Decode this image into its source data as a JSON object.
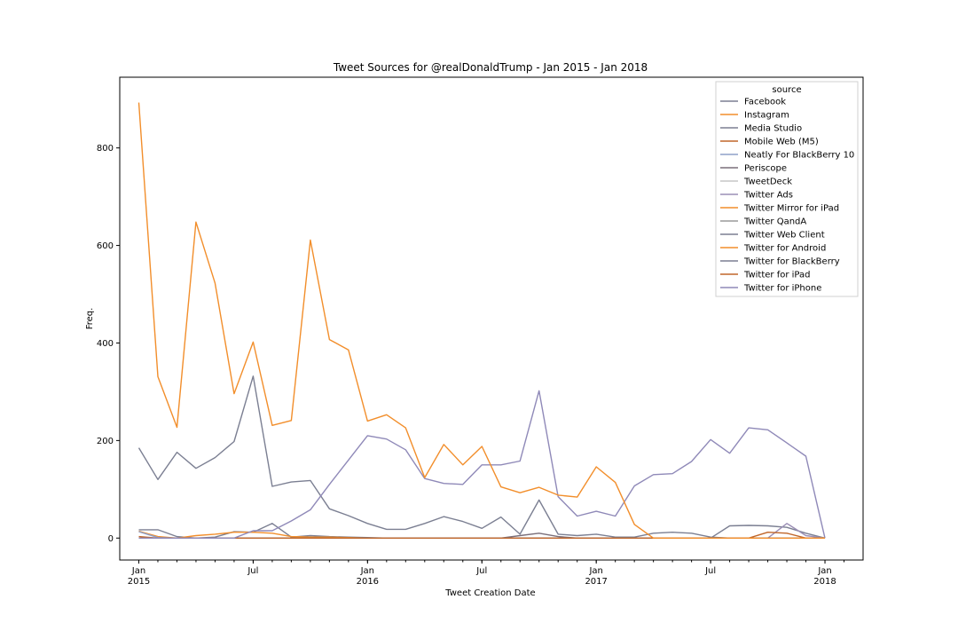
{
  "chart_data": {
    "type": "line",
    "title": "Tweet Sources for @realDonaldTrump - Jan 2015 - Jan 2018",
    "xlabel": "Tweet Creation Date",
    "ylabel": "Freq.",
    "ylim": [
      -45,
      945
    ],
    "y_ticks": [
      0,
      200,
      400,
      600,
      800
    ],
    "x_tick_major": [
      {
        "month": 0,
        "label": "Jan",
        "year": "2015"
      },
      {
        "month": 6,
        "label": "Jul",
        "year": ""
      },
      {
        "month": 12,
        "label": "Jan",
        "year": "2016"
      },
      {
        "month": 18,
        "label": "Jul",
        "year": ""
      },
      {
        "month": 24,
        "label": "Jan",
        "year": "2017"
      },
      {
        "month": 30,
        "label": "Jul",
        "year": ""
      },
      {
        "month": 36,
        "label": "Jan",
        "year": "2018"
      }
    ],
    "x_range_months": [
      -1,
      38
    ],
    "legend_title": "source",
    "legend_placement": "top-right",
    "grid": false,
    "series": [
      {
        "name": "Facebook",
        "color": "#7b7f92",
        "values": [
          17,
          17,
          3,
          0,
          2,
          13,
          12,
          30,
          2,
          5,
          3,
          2,
          1,
          0,
          0,
          0,
          0,
          0,
          0,
          0,
          0,
          0,
          0,
          0,
          0,
          0,
          0,
          0,
          0,
          0,
          0,
          0,
          0,
          0,
          0,
          0,
          0
        ]
      },
      {
        "name": "Instagram",
        "color": "#f28e2b",
        "values": [
          14,
          3,
          0,
          5,
          8,
          12,
          12,
          10,
          3,
          2,
          2,
          1,
          0,
          0,
          0,
          0,
          0,
          0,
          0,
          0,
          0,
          0,
          0,
          0,
          0,
          0,
          0,
          0,
          0,
          0,
          0,
          0,
          0,
          0,
          0,
          0,
          0
        ]
      },
      {
        "name": "Media Studio",
        "color": "#7b7f92",
        "values": [
          0,
          0,
          0,
          0,
          0,
          0,
          0,
          0,
          0,
          0,
          0,
          0,
          0,
          0,
          0,
          0,
          0,
          0,
          0,
          0,
          0,
          0,
          0,
          0,
          0,
          0,
          0,
          0,
          0,
          0,
          0,
          25,
          26,
          25,
          22,
          10,
          0
        ]
      },
      {
        "name": "Mobile Web (M5)",
        "color": "#c0662a",
        "values": [
          3,
          0,
          0,
          0,
          0,
          0,
          0,
          0,
          0,
          0,
          0,
          0,
          0,
          0,
          0,
          0,
          0,
          0,
          0,
          0,
          0,
          0,
          0,
          0,
          0,
          0,
          0,
          0,
          0,
          0,
          0,
          0,
          0,
          0,
          0,
          0,
          0
        ]
      },
      {
        "name": "Neatly For BlackBerry 10",
        "color": "#8fa0c8",
        "values": [
          13,
          1,
          0,
          0,
          0,
          0,
          0,
          0,
          0,
          0,
          0,
          0,
          0,
          0,
          0,
          0,
          0,
          0,
          0,
          0,
          0,
          0,
          0,
          0,
          0,
          0,
          0,
          0,
          0,
          0,
          0,
          0,
          0,
          0,
          0,
          0,
          0
        ]
      },
      {
        "name": "Periscope",
        "color": "#7a6f7a",
        "values": [
          0,
          0,
          0,
          0,
          0,
          0,
          0,
          0,
          0,
          0,
          0,
          0,
          0,
          0,
          0,
          0,
          0,
          0,
          0,
          0,
          5,
          10,
          3,
          0,
          0,
          0,
          0,
          0,
          0,
          0,
          0,
          0,
          0,
          0,
          0,
          0,
          0
        ]
      },
      {
        "name": "TweetDeck",
        "color": "#c6c6c6",
        "values": [
          0,
          0,
          0,
          0,
          0,
          0,
          0,
          0,
          0,
          0,
          0,
          0,
          0,
          0,
          0,
          0,
          0,
          0,
          0,
          0,
          0,
          0,
          0,
          0,
          0,
          0,
          0,
          0,
          0,
          0,
          0,
          0,
          0,
          0,
          0,
          0,
          0
        ]
      },
      {
        "name": "Twitter Ads",
        "color": "#9b8fb5",
        "values": [
          0,
          0,
          0,
          0,
          0,
          0,
          0,
          0,
          0,
          0,
          0,
          0,
          0,
          0,
          0,
          0,
          0,
          0,
          0,
          0,
          0,
          0,
          0,
          0,
          0,
          0,
          0,
          0,
          0,
          0,
          0,
          0,
          0,
          0,
          30,
          5,
          0
        ]
      },
      {
        "name": "Twitter Mirror for iPad",
        "color": "#f28e2b",
        "values": [
          0,
          0,
          0,
          0,
          0,
          0,
          0,
          0,
          0,
          0,
          0,
          0,
          0,
          0,
          0,
          0,
          0,
          0,
          0,
          0,
          0,
          0,
          0,
          0,
          0,
          0,
          0,
          0,
          0,
          0,
          0,
          0,
          0,
          0,
          0,
          0,
          0
        ]
      },
      {
        "name": "Twitter QandA",
        "color": "#9a9a9a",
        "values": [
          0,
          0,
          0,
          0,
          0,
          0,
          0,
          0,
          0,
          0,
          0,
          0,
          0,
          0,
          0,
          0,
          0,
          0,
          0,
          0,
          0,
          0,
          0,
          0,
          0,
          0,
          0,
          0,
          0,
          0,
          0,
          0,
          0,
          0,
          0,
          0,
          0
        ]
      },
      {
        "name": "Twitter Web Client",
        "color": "#7b7f92",
        "values": [
          185,
          120,
          176,
          143,
          165,
          198,
          332,
          106,
          115,
          118,
          60,
          46,
          30,
          18,
          18,
          30,
          44,
          34,
          20,
          43,
          8,
          78,
          8,
          5,
          8,
          2,
          2,
          10,
          12,
          10,
          2,
          0,
          0,
          0,
          0,
          0,
          0
        ]
      },
      {
        "name": "Twitter for Android",
        "color": "#f28e2b",
        "values": [
          893,
          331,
          227,
          648,
          523,
          296,
          402,
          231,
          241,
          611,
          407,
          386,
          240,
          253,
          226,
          124,
          192,
          150,
          188,
          105,
          93,
          104,
          88,
          84,
          146,
          114,
          28,
          0,
          0,
          0,
          0,
          0,
          0,
          0,
          0,
          0,
          0
        ]
      },
      {
        "name": "Twitter for BlackBerry",
        "color": "#7b7f92",
        "values": [
          0,
          0,
          0,
          0,
          0,
          0,
          0,
          0,
          0,
          0,
          0,
          0,
          0,
          0,
          0,
          0,
          0,
          0,
          0,
          0,
          0,
          0,
          0,
          0,
          0,
          0,
          0,
          0,
          0,
          0,
          0,
          0,
          0,
          0,
          0,
          0,
          0
        ]
      },
      {
        "name": "Twitter for iPad",
        "color": "#c0662a",
        "values": [
          0,
          0,
          0,
          0,
          0,
          0,
          0,
          0,
          0,
          0,
          0,
          0,
          0,
          0,
          0,
          0,
          0,
          0,
          0,
          0,
          0,
          0,
          0,
          0,
          0,
          0,
          0,
          0,
          0,
          0,
          0,
          0,
          0,
          12,
          10,
          0,
          0
        ]
      },
      {
        "name": "Twitter for iPhone",
        "color": "#8f89b8",
        "values": [
          0,
          0,
          0,
          0,
          0,
          0,
          15,
          15,
          35,
          58,
          110,
          160,
          210,
          203,
          181,
          122,
          112,
          110,
          150,
          150,
          158,
          302,
          85,
          45,
          55,
          45,
          107,
          130,
          132,
          157,
          202,
          174,
          226,
          222,
          195,
          168,
          0
        ]
      }
    ]
  }
}
